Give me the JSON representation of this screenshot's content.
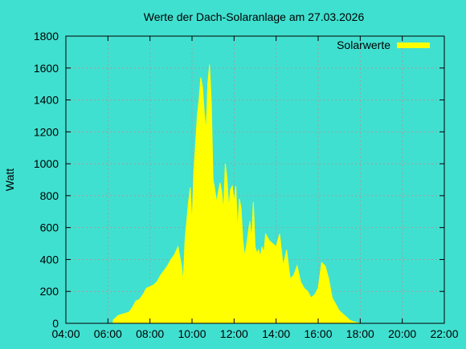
{
  "chart_data": {
    "type": "area",
    "title": "Werte der Dach-Solaranlage am 27.03.2026",
    "xlabel": "",
    "ylabel": "Watt",
    "xlim": [
      "04:00",
      "22:00"
    ],
    "ylim": [
      0,
      1800
    ],
    "x_ticks": [
      "04:00",
      "06:00",
      "08:00",
      "10:00",
      "12:00",
      "14:00",
      "16:00",
      "18:00",
      "20:00",
      "22:00"
    ],
    "y_ticks": [
      "0",
      "200",
      "400",
      "600",
      "800",
      "1000",
      "1200",
      "1400",
      "1600",
      "1800"
    ],
    "grid": true,
    "legend_position": "top-right",
    "series": [
      {
        "name": "Solarwerte",
        "color": "#ffff00",
        "x": [
          "06:15",
          "06:30",
          "06:45",
          "07:00",
          "07:10",
          "07:20",
          "07:30",
          "07:40",
          "07:50",
          "08:00",
          "08:10",
          "08:20",
          "08:30",
          "08:40",
          "08:50",
          "09:00",
          "09:10",
          "09:20",
          "09:30",
          "09:35",
          "09:40",
          "09:45",
          "09:50",
          "09:55",
          "10:00",
          "10:05",
          "10:10",
          "10:15",
          "10:20",
          "10:25",
          "10:30",
          "10:35",
          "10:40",
          "10:45",
          "10:50",
          "10:55",
          "11:00",
          "11:05",
          "11:10",
          "11:15",
          "11:20",
          "11:25",
          "11:30",
          "11:35",
          "11:40",
          "11:45",
          "11:50",
          "11:55",
          "12:00",
          "12:05",
          "12:10",
          "12:15",
          "12:20",
          "12:25",
          "12:30",
          "12:35",
          "12:40",
          "12:45",
          "12:50",
          "12:55",
          "13:00",
          "13:05",
          "13:10",
          "13:15",
          "13:20",
          "13:25",
          "13:30",
          "13:40",
          "13:50",
          "14:00",
          "14:10",
          "14:20",
          "14:30",
          "14:40",
          "14:50",
          "15:00",
          "15:10",
          "15:20",
          "15:30",
          "15:40",
          "15:50",
          "16:00",
          "16:10",
          "16:20",
          "16:30",
          "16:40",
          "16:50",
          "17:00",
          "17:10",
          "17:20",
          "17:30",
          "17:40",
          "17:50",
          "18:00",
          "18:10",
          "18:20"
        ],
        "y": [
          20,
          50,
          60,
          70,
          100,
          140,
          150,
          180,
          220,
          230,
          240,
          260,
          300,
          330,
          360,
          400,
          430,
          480,
          360,
          260,
          520,
          640,
          760,
          850,
          620,
          940,
          1120,
          1300,
          1400,
          1540,
          1480,
          1320,
          1200,
          1500,
          1620,
          1380,
          900,
          840,
          760,
          820,
          880,
          820,
          700,
          1000,
          900,
          720,
          840,
          860,
          760,
          860,
          580,
          780,
          720,
          520,
          420,
          480,
          560,
          640,
          520,
          760,
          480,
          440,
          460,
          420,
          480,
          440,
          560,
          520,
          500,
          480,
          560,
          360,
          460,
          280,
          300,
          360,
          260,
          220,
          200,
          160,
          180,
          220,
          380,
          360,
          280,
          160,
          120,
          80,
          60,
          40,
          20,
          10,
          5,
          0,
          0,
          0
        ]
      }
    ]
  }
}
